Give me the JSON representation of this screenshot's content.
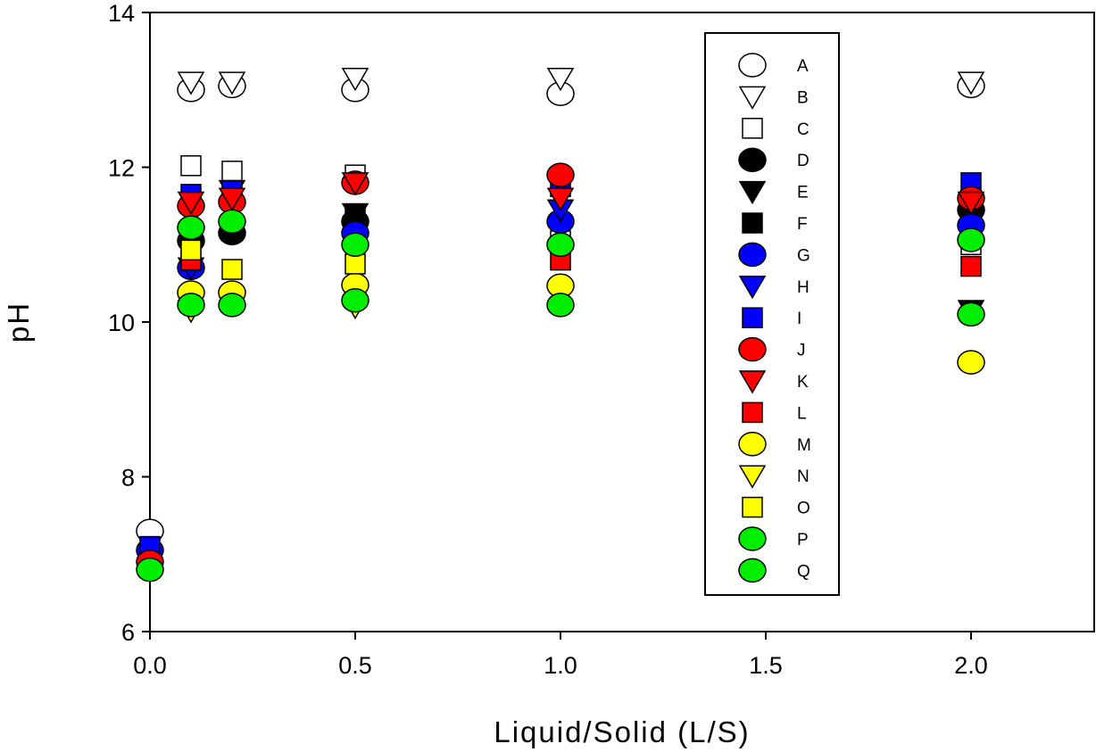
{
  "chart_data": {
    "type": "scatter",
    "title": "",
    "xlabel": "Liquid/Solid (L/S)",
    "ylabel": "pH",
    "xlim": [
      0,
      2.3
    ],
    "ylim": [
      6,
      14
    ],
    "xticks": [
      0,
      0.5,
      1,
      1.5,
      2
    ],
    "xtick_labels": [
      "0.0",
      "0.5",
      "1.0",
      "1.5",
      "2.0"
    ],
    "yticks": [
      6,
      8,
      10,
      12,
      14
    ],
    "ytick_labels": [
      "6",
      "8",
      "10",
      "12",
      "14"
    ],
    "grid": false,
    "legend_position": "top-right-inside",
    "series": [
      {
        "name": "A",
        "marker": "circle",
        "fill": "#ffffff",
        "points": [
          [
            0,
            7.3
          ],
          [
            0.1,
            13.0
          ],
          [
            0.2,
            13.05
          ],
          [
            0.5,
            13.0
          ],
          [
            1,
            12.95
          ],
          [
            2,
            13.05
          ]
        ]
      },
      {
        "name": "B",
        "marker": "triangle-down",
        "fill": "#ffffff",
        "points": [
          [
            0.1,
            13.1
          ],
          [
            0.2,
            13.1
          ],
          [
            0.5,
            13.15
          ],
          [
            1,
            13.15
          ],
          [
            2,
            13.1
          ]
        ]
      },
      {
        "name": "C",
        "marker": "square",
        "fill": "#ffffff",
        "points": [
          [
            0.1,
            12.02
          ],
          [
            0.2,
            11.95
          ],
          [
            0.5,
            11.9
          ],
          [
            1,
            11.05
          ],
          [
            2,
            11.0
          ]
        ]
      },
      {
        "name": "D",
        "marker": "circle",
        "fill": "#000000",
        "points": [
          [
            0.1,
            11.05
          ],
          [
            0.2,
            11.15
          ],
          [
            0.5,
            11.3
          ],
          [
            2,
            11.45
          ]
        ]
      },
      {
        "name": "E",
        "marker": "triangle-down",
        "fill": "#000000",
        "points": [
          [
            0.2,
            11.7
          ],
          [
            0.5,
            11.4
          ],
          [
            2,
            10.15
          ]
        ]
      },
      {
        "name": "F",
        "marker": "square",
        "fill": "#000000",
        "points": [
          [
            0.5,
            11.35
          ]
        ]
      },
      {
        "name": "G",
        "marker": "circle",
        "fill": "#0000ff",
        "points": [
          [
            0,
            7.05
          ],
          [
            0.1,
            10.7
          ],
          [
            0.5,
            11.15
          ],
          [
            1,
            11.3
          ],
          [
            2,
            11.25
          ]
        ]
      },
      {
        "name": "H",
        "marker": "triangle-down",
        "fill": "#0000ff",
        "points": [
          [
            0.1,
            10.7
          ],
          [
            1,
            11.45
          ]
        ]
      },
      {
        "name": "I",
        "marker": "square",
        "fill": "#0000ff",
        "points": [
          [
            0,
            7.1
          ],
          [
            0.1,
            11.65
          ],
          [
            0.2,
            11.7
          ],
          [
            1,
            11.75
          ],
          [
            2,
            11.8
          ]
        ]
      },
      {
        "name": "J",
        "marker": "circle",
        "fill": "#ff0000",
        "points": [
          [
            0,
            6.9
          ],
          [
            0.1,
            11.5
          ],
          [
            0.2,
            11.55
          ],
          [
            0.5,
            11.8
          ],
          [
            1,
            11.9
          ],
          [
            2,
            11.6
          ]
        ]
      },
      {
        "name": "K",
        "marker": "triangle-down",
        "fill": "#ff0000",
        "points": [
          [
            0.1,
            11.55
          ],
          [
            0.2,
            11.6
          ],
          [
            0.5,
            11.8
          ],
          [
            1,
            11.6
          ],
          [
            2,
            11.55
          ]
        ]
      },
      {
        "name": "L",
        "marker": "square",
        "fill": "#ff0000",
        "points": [
          [
            0.1,
            10.8
          ],
          [
            1,
            10.8
          ],
          [
            2,
            10.72
          ]
        ]
      },
      {
        "name": "M",
        "marker": "circle",
        "fill": "#ffff00",
        "points": [
          [
            0.1,
            10.38
          ],
          [
            0.2,
            10.38
          ],
          [
            0.5,
            10.48
          ],
          [
            1,
            10.47
          ],
          [
            2,
            9.48
          ]
        ]
      },
      {
        "name": "N",
        "marker": "triangle-down",
        "fill": "#ffff00",
        "points": [
          [
            0.1,
            10.15
          ],
          [
            0.5,
            10.2
          ]
        ]
      },
      {
        "name": "O",
        "marker": "square",
        "fill": "#ffff00",
        "points": [
          [
            0.1,
            10.93
          ],
          [
            0.2,
            10.68
          ],
          [
            0.5,
            10.75
          ]
        ]
      },
      {
        "name": "P",
        "marker": "circle",
        "fill": "#00ee00",
        "points": [
          [
            0,
            6.8
          ],
          [
            0.1,
            11.22
          ],
          [
            0.2,
            11.3
          ],
          [
            0.5,
            11.0
          ],
          [
            1,
            11.0
          ],
          [
            2,
            11.06
          ]
        ]
      },
      {
        "name": "Q",
        "marker": "circle",
        "fill": "#00ee00",
        "points": [
          [
            0.1,
            10.22
          ],
          [
            0.2,
            10.22
          ],
          [
            0.5,
            10.28
          ],
          [
            1,
            10.22
          ],
          [
            2,
            10.1
          ]
        ]
      }
    ]
  }
}
